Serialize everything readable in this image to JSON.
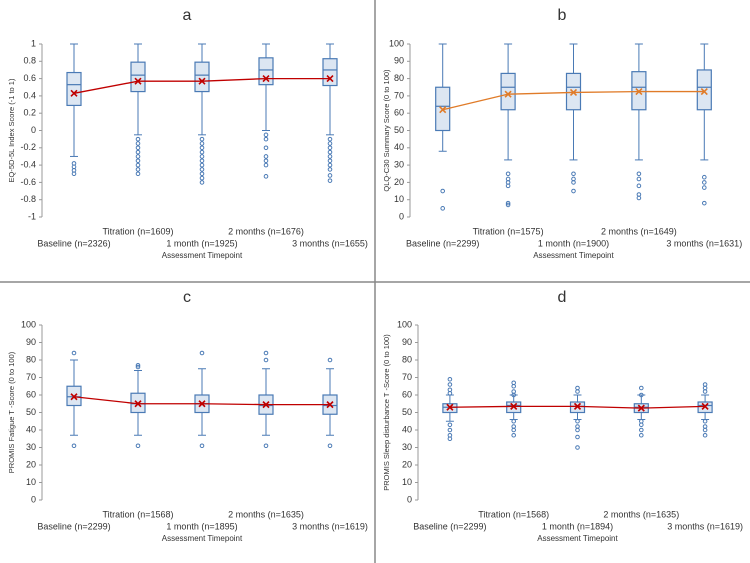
{
  "chart_data": [
    {
      "type": "box",
      "title": "a",
      "ylabel": "EQ-5D-5L Index Score  (-1 to 1)",
      "xlabel": "Assessment Timepoint",
      "categories": [
        "Baseline (n=2326)",
        "Titration (n=1609)",
        "1 month (n=1925)",
        "2 months (n=1676)",
        "3 months (n=1655)"
      ],
      "ylim": [
        -1,
        1
      ],
      "yticks": [
        -1,
        -0.8,
        -0.6,
        -0.4,
        -0.2,
        0,
        0.2,
        0.4,
        0.6,
        0.8,
        1
      ],
      "mean_color": "#c00000",
      "box_color": "#dce6f2",
      "edge_color": "#4a7ab5",
      "boxes": [
        {
          "min": -0.3,
          "q1": 0.29,
          "median": 0.53,
          "q3": 0.67,
          "max": 1,
          "mean": 0.43,
          "outliers": [
            -0.38,
            -0.42,
            -0.46,
            -0.5
          ]
        },
        {
          "min": -0.05,
          "q1": 0.45,
          "median": 0.64,
          "q3": 0.79,
          "max": 1,
          "mean": 0.57,
          "outliers": [
            -0.1,
            -0.15,
            -0.2,
            -0.25,
            -0.3,
            -0.35,
            -0.4,
            -0.45,
            -0.5
          ]
        },
        {
          "min": -0.05,
          "q1": 0.45,
          "median": 0.64,
          "q3": 0.79,
          "max": 1,
          "mean": 0.57,
          "outliers": [
            -0.1,
            -0.15,
            -0.2,
            -0.25,
            -0.3,
            -0.35,
            -0.4,
            -0.45,
            -0.5,
            -0.55,
            -0.6
          ]
        },
        {
          "min": 0,
          "q1": 0.53,
          "median": 0.7,
          "q3": 0.84,
          "max": 1,
          "mean": 0.6,
          "outliers": [
            -0.05,
            -0.1,
            -0.2,
            -0.3,
            -0.35,
            -0.4,
            -0.53
          ]
        },
        {
          "min": -0.05,
          "q1": 0.52,
          "median": 0.7,
          "q3": 0.83,
          "max": 1,
          "mean": 0.6,
          "outliers": [
            -0.1,
            -0.15,
            -0.2,
            -0.25,
            -0.3,
            -0.35,
            -0.4,
            -0.45,
            -0.52,
            -0.58
          ]
        }
      ]
    },
    {
      "type": "box",
      "title": "b",
      "ylabel": "QLQ-C30 Summary Score (0 to 100)",
      "xlabel": "Assessment Timepoint",
      "categories": [
        "Baseline (n=2299)",
        "Titration (n=1575)",
        "1 month (n=1900)",
        "2 months (n=1649)",
        "3 months (n=1631)"
      ],
      "ylim": [
        0,
        100
      ],
      "yticks": [
        0,
        10,
        20,
        30,
        40,
        50,
        60,
        70,
        80,
        90,
        100
      ],
      "mean_color": "#e07b28",
      "box_color": "#dce6f2",
      "edge_color": "#4a7ab5",
      "boxes": [
        {
          "min": 38,
          "q1": 50,
          "median": 64,
          "q3": 75,
          "max": 100,
          "mean": 62,
          "outliers": [
            15,
            5
          ]
        },
        {
          "min": 33,
          "q1": 62,
          "median": 75,
          "q3": 83,
          "max": 100,
          "mean": 71,
          "outliers": [
            25,
            22,
            20,
            18,
            8,
            7
          ]
        },
        {
          "min": 33,
          "q1": 62,
          "median": 75,
          "q3": 83,
          "max": 100,
          "mean": 72,
          "outliers": [
            25,
            22,
            20,
            15
          ]
        },
        {
          "min": 33,
          "q1": 62,
          "median": 75,
          "q3": 84,
          "max": 100,
          "mean": 72.5,
          "outliers": [
            25,
            22,
            18,
            13,
            11
          ]
        },
        {
          "min": 33,
          "q1": 62,
          "median": 75,
          "q3": 85,
          "max": 100,
          "mean": 72.5,
          "outliers": [
            23,
            20,
            17,
            8
          ]
        }
      ]
    },
    {
      "type": "box",
      "title": "c",
      "ylabel": "PROMIS Fatigue T -Score (0 to 100)",
      "xlabel": "Assessment Timepoint",
      "categories": [
        "Baseline (n=2299)",
        "Titration (n=1568)",
        "1 month (n=1895)",
        "2 months (n=1635)",
        "3 months (n=1619)"
      ],
      "ylim": [
        0,
        100
      ],
      "yticks": [
        0,
        10,
        20,
        30,
        40,
        50,
        60,
        70,
        80,
        90,
        100
      ],
      "mean_color": "#c00000",
      "box_color": "#dce6f2",
      "edge_color": "#4a7ab5",
      "boxes": [
        {
          "min": 37,
          "q1": 54,
          "median": 59,
          "q3": 65,
          "max": 80,
          "mean": 59,
          "outliers": [
            84,
            31
          ]
        },
        {
          "min": 37,
          "q1": 50,
          "median": 55,
          "q3": 61,
          "max": 74,
          "mean": 55,
          "outliers": [
            77,
            76,
            31
          ]
        },
        {
          "min": 37,
          "q1": 50,
          "median": 55,
          "q3": 60,
          "max": 75,
          "mean": 55,
          "outliers": [
            84,
            31
          ]
        },
        {
          "min": 37,
          "q1": 49,
          "median": 54,
          "q3": 60,
          "max": 75,
          "mean": 54.5,
          "outliers": [
            84,
            80,
            31
          ]
        },
        {
          "min": 37,
          "q1": 49,
          "median": 54,
          "q3": 60,
          "max": 75,
          "mean": 54.5,
          "outliers": [
            80,
            31
          ]
        }
      ]
    },
    {
      "type": "box",
      "title": "d",
      "ylabel": "PROMIS Sleep disturbance T -Score (0 to 100)",
      "xlabel": "Assessment Timepoint",
      "categories": [
        "Baseline (n=2299)",
        "Titration (n=1568)",
        "1 month (n=1894)",
        "2 months (n=1635)",
        "3 months (n=1619)"
      ],
      "ylim": [
        0,
        100
      ],
      "yticks": [
        0,
        10,
        20,
        30,
        40,
        50,
        60,
        70,
        80,
        90,
        100
      ],
      "mean_color": "#c00000",
      "box_color": "#dce6f2",
      "edge_color": "#4a7ab5",
      "boxes": [
        {
          "min": 45,
          "q1": 50,
          "median": 53,
          "q3": 55,
          "max": 60,
          "mean": 53,
          "outliers": [
            69,
            66,
            63,
            61,
            43,
            40,
            37,
            35
          ]
        },
        {
          "min": 46,
          "q1": 50,
          "median": 54,
          "q3": 56,
          "max": 60,
          "mean": 53.5,
          "outliers": [
            67,
            65,
            62,
            60,
            45,
            42,
            40,
            37
          ]
        },
        {
          "min": 46,
          "q1": 50,
          "median": 53.5,
          "q3": 56,
          "max": 60,
          "mean": 53.5,
          "outliers": [
            64,
            62,
            45,
            42,
            40,
            36,
            30
          ]
        },
        {
          "min": 46,
          "q1": 50,
          "median": 53,
          "q3": 55,
          "max": 60,
          "mean": 52.5,
          "outliers": [
            64,
            60,
            45,
            43,
            40,
            37
          ]
        },
        {
          "min": 46,
          "q1": 50,
          "median": 54,
          "q3": 56,
          "max": 60,
          "mean": 53.5,
          "outliers": [
            66,
            64,
            62,
            45,
            42,
            40,
            37
          ]
        }
      ]
    }
  ]
}
